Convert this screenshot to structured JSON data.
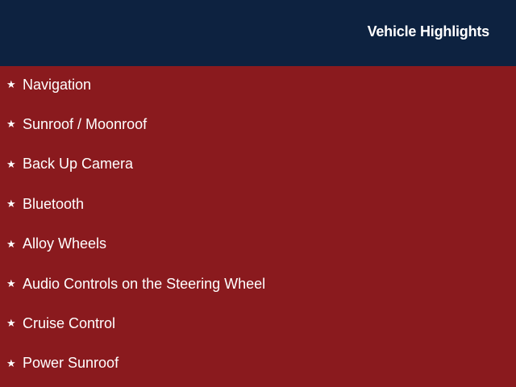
{
  "header": {
    "title": "Vehicle Highlights"
  },
  "colors": {
    "header_bg": "#0d2240",
    "body_bg": "#8a1a1e",
    "text": "#ffffff"
  },
  "bullet_icon": "star-icon",
  "features": [
    "Navigation",
    "Sunroof / Moonroof",
    "Back Up Camera",
    "Bluetooth",
    "Alloy Wheels",
    "Audio Controls on the Steering Wheel",
    "Cruise Control",
    "Power Sunroof"
  ]
}
